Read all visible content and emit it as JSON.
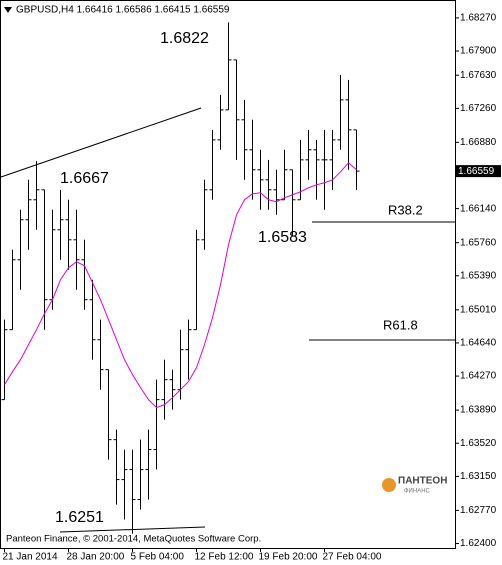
{
  "chart_data": {
    "type": "ohlc",
    "title": "GBPUSD,H4 1.66416 1.66586 1.66415 1.66559",
    "footer": "Panteon Finance, © 2001-2014, MetaQuotes Software Corp.",
    "logo": {
      "name": "ПАНТЕОН",
      "sub": "ФИНАНС"
    },
    "annotations": [
      "1.6822",
      "1.6667",
      "1.6583",
      "1.6251",
      "R38.2",
      "R61.8"
    ],
    "categories": [
      "21 Jan 2014",
      null,
      null,
      null,
      null,
      null,
      null,
      null,
      "28 Jan 20:00",
      null,
      null,
      null,
      null,
      null,
      null,
      null,
      "5 Feb 04:00",
      null,
      null,
      null,
      null,
      null,
      null,
      null,
      "12 Feb 12:00",
      null,
      null,
      null,
      null,
      null,
      null,
      null,
      "19 Feb 20:00",
      null,
      null,
      null,
      null,
      null,
      null,
      null,
      "27 Feb 04:00",
      null,
      null,
      null,
      null
    ],
    "open": [
      1.64007,
      1.64788,
      1.65569,
      1.66016,
      1.66239,
      1.6635,
      1.65123,
      1.65904,
      1.66016,
      1.65792,
      1.65569,
      1.65123,
      1.64676,
      1.64342,
      1.6356,
      1.63114,
      1.63226,
      1.62891,
      1.63226,
      1.63449,
      1.64007,
      1.6423,
      1.64118,
      1.64565,
      1.64788,
      1.65792,
      1.6635,
      1.66908,
      1.67243,
      1.67801,
      1.67132,
      1.66797,
      1.66574,
      1.66462,
      1.6635,
      1.66239,
      1.66574,
      1.66239,
      1.66685,
      1.66797,
      1.66685,
      1.66685,
      1.66908,
      1.67355,
      1.6702
    ],
    "high": [
      1.649,
      1.65681,
      1.66127,
      1.66462,
      1.6667,
      1.6635,
      1.66127,
      1.6635,
      1.66239,
      1.66127,
      1.65792,
      1.65346,
      1.649,
      1.64342,
      1.63672,
      1.63449,
      1.63449,
      1.6356,
      1.63672,
      1.6423,
      1.64453,
      1.64342,
      1.64788,
      1.649,
      1.65904,
      1.66462,
      1.6702,
      1.67411,
      1.6822,
      1.67801,
      1.67355,
      1.67132,
      1.66797,
      1.66685,
      1.66574,
      1.66797,
      1.66574,
      1.66908,
      1.6702,
      1.66908,
      1.6702,
      1.6702,
      1.67634,
      1.67578,
      1.6702
    ],
    "low": [
      1.64007,
      1.64788,
      1.65234,
      1.65681,
      1.65904,
      1.64788,
      1.65011,
      1.65569,
      1.65458,
      1.65234,
      1.65011,
      1.64453,
      1.64118,
      1.63337,
      1.62835,
      1.62668,
      1.6251,
      1.62779,
      1.62891,
      1.63226,
      1.63784,
      1.63895,
      1.64007,
      1.6423,
      1.64788,
      1.65681,
      1.66239,
      1.66797,
      1.67243,
      1.66685,
      1.66462,
      1.66239,
      1.66127,
      1.66127,
      1.66071,
      1.66239,
      1.6583,
      1.66239,
      1.66462,
      1.66239,
      1.66127,
      1.6635,
      1.66797,
      1.66574,
      1.6635
    ],
    "close": [
      1.64788,
      1.65569,
      1.66016,
      1.66239,
      1.6635,
      1.65123,
      1.65904,
      1.66016,
      1.65792,
      1.65569,
      1.65123,
      1.64676,
      1.64342,
      1.6356,
      1.63114,
      1.63226,
      1.62891,
      1.63226,
      1.63449,
      1.64007,
      1.6423,
      1.64118,
      1.64565,
      1.64788,
      1.65792,
      1.6635,
      1.66908,
      1.67243,
      1.67801,
      1.67132,
      1.66797,
      1.66574,
      1.66462,
      1.6635,
      1.66239,
      1.66574,
      1.66239,
      1.66685,
      1.66797,
      1.66685,
      1.66685,
      1.66908,
      1.67355,
      1.6702,
      1.66559
    ],
    "ma": {
      "color": "#e000e0",
      "values": [
        1.64174,
        1.64319,
        1.64453,
        1.64621,
        1.64788,
        1.64967,
        1.65123,
        1.65346,
        1.6548,
        1.65547,
        1.65502,
        1.65313,
        1.65123,
        1.649,
        1.64676,
        1.64453,
        1.64286,
        1.64141,
        1.64007,
        1.63918,
        1.63951,
        1.64029,
        1.64118,
        1.64208,
        1.64364,
        1.64621,
        1.64922,
        1.6529,
        1.65737,
        1.66071,
        1.66239,
        1.66306,
        1.66317,
        1.66239,
        1.66217,
        1.66261,
        1.66295,
        1.66328,
        1.66373,
        1.66406,
        1.66429,
        1.66462,
        1.66551,
        1.66652,
        1.66574
      ]
    },
    "color": "#000000",
    "current_price": {
      "value": 1.66559,
      "label": "1.66559"
    },
    "ylim": [
      1.6235,
      1.6847
    ],
    "yticks": [
      {
        "value": 1.6827,
        "label": "1.68270"
      },
      {
        "value": 1.679,
        "label": "1.67900"
      },
      {
        "value": 1.6763,
        "label": "1.67630"
      },
      {
        "value": 1.6726,
        "label": "1.67260"
      },
      {
        "value": 1.6688,
        "label": "1.66880"
      },
      {
        "value": 1.6614,
        "label": "1.66140"
      },
      {
        "value": 1.6576,
        "label": "1.65760"
      },
      {
        "value": 1.6539,
        "label": "1.65390"
      },
      {
        "value": 1.6501,
        "label": "1.65010"
      },
      {
        "value": 1.6464,
        "label": "1.64640"
      },
      {
        "value": 1.6427,
        "label": "1.64270"
      },
      {
        "value": 1.6389,
        "label": "1.63890"
      },
      {
        "value": 1.6352,
        "label": "1.63520"
      },
      {
        "value": 1.6315,
        "label": "1.63150"
      },
      {
        "value": 1.6277,
        "label": "1.62770"
      },
      {
        "value": 1.624,
        "label": "1.62400"
      }
    ],
    "grid": false
  }
}
